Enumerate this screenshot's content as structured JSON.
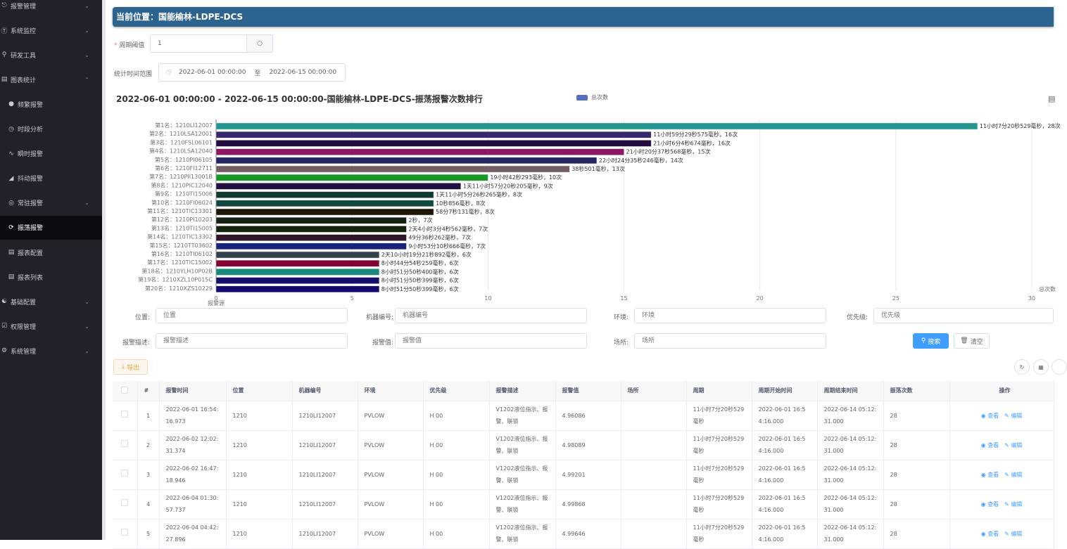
{
  "sidebar": {
    "items": [
      {
        "label": "报警管理",
        "icon": "bell-icon",
        "expand": "down"
      },
      {
        "label": "系统监控",
        "icon": "monitor-icon",
        "expand": "down"
      },
      {
        "label": "研发工具",
        "icon": "tool-icon",
        "expand": "down"
      },
      {
        "label": "图表统计",
        "icon": "bar-chart-icon",
        "expand": "up"
      },
      {
        "label": "频繁报警",
        "icon": "frequent-icon",
        "sub": true
      },
      {
        "label": "时段分析",
        "icon": "clock-icon",
        "sub": true
      },
      {
        "label": "瞬时报警",
        "icon": "line-chart-icon",
        "sub": true
      },
      {
        "label": "抖动报警",
        "icon": "signal-icon",
        "sub": true
      },
      {
        "label": "常驻报警",
        "icon": "target-icon",
        "sub": true,
        "expand": "down"
      },
      {
        "label": "振荡报警",
        "icon": "refresh-icon",
        "sub": true,
        "active": true
      },
      {
        "label": "报表配置",
        "icon": "form-icon",
        "sub": true
      },
      {
        "label": "报表列表",
        "icon": "list-icon",
        "sub": true
      },
      {
        "label": "基础配置",
        "icon": "config-icon",
        "expand": "down"
      },
      {
        "label": "权限管理",
        "icon": "lock-icon",
        "expand": "down"
      },
      {
        "label": "系统管理",
        "icon": "gear-icon",
        "expand": "down"
      }
    ]
  },
  "header": {
    "title": "当前位置：国能榆林-LDPE-DCS"
  },
  "filters": {
    "period_label": "周期阈值",
    "period_value": "1",
    "range_label": "统计时间范围",
    "range_start": "2022-06-01 00:00:00",
    "range_sep": "至",
    "range_end": "2022-06-15 00:00:00"
  },
  "chart_data": {
    "type": "bar",
    "orientation": "horizontal",
    "title": "2022-06-01 00:00:00 - 2022-06-15 00:00:00-国能榆林-LDPE-DCS-振荡报警次数排行",
    "legend": {
      "label": "总次数",
      "color": "#5470c6",
      "position": "top"
    },
    "ylabel": "报警源",
    "xlabel": "总次数",
    "xlim": [
      0,
      30
    ],
    "xticks": [
      0,
      5,
      10,
      15,
      20,
      25,
      30
    ],
    "grid": true,
    "categories": [
      "第1名：1210LI12007",
      "第2名：1210LSA12001",
      "第3名：1210FSL06101",
      "第4名：1210LSA12040",
      "第5名：1210PI06105",
      "第6名：1210FI12711",
      "第7名：1210PII13001B",
      "第8名：1210PIC12040",
      "第9名：1210TI15006",
      "第10名：1210FI06024",
      "第11名：1210TIC13301",
      "第12名：1210PI10203",
      "第13名：1210TI15005",
      "第14名：1210TIC13302",
      "第15名：1210TT03602",
      "第16名：1210TI06102",
      "第17名：1210TIC15002",
      "第18名：1210YLH10P02B",
      "第19名：1210XZL10P015C",
      "第20名：1210XZS10229"
    ],
    "values": [
      28,
      16,
      16,
      15,
      14,
      13,
      10,
      9,
      8,
      8,
      8,
      7,
      7,
      7,
      7,
      6,
      6,
      6,
      6,
      6
    ],
    "data_labels": [
      "11小时7分20秒529毫秒，28次",
      "11小时59分29秒575毫秒，16次",
      "21小时6分4秒674毫秒，16次",
      "21小时20分37秒568毫秒，15次",
      "22小时24分35秒246毫秒，14次",
      "38秒501毫秒，13次",
      "19小时42秒293毫秒，10次",
      "1天11小时57分20秒205毫秒，9次",
      "1天11小时5分26秒265毫秒，8次",
      "10秒856毫秒，8次",
      "58分7秒131毫秒，8次",
      "2秒，7次",
      "2天4小时3分4秒562毫秒，7次",
      "49分36秒262毫秒，7次",
      "9小时53分10秒666毫秒，7次",
      "2天10小时19分21秒892毫秒，6次",
      "8小时44分54秒259毫秒，6次",
      "8小时51分50秒400毫秒，6次",
      "8小时51分50秒399毫秒，6次",
      "8小时51分50秒399毫秒，6次"
    ],
    "colors": [
      "#22968f",
      "#35286e",
      "#230b3f",
      "#8b1862",
      "#24265f",
      "#735f61",
      "#179926",
      "#200f3f",
      "#113b31",
      "#0f4a42",
      "#201606",
      "#162116",
      "#13230e",
      "#331529",
      "#18247a",
      "#35424e",
      "#850233",
      "#19887e",
      "#120f6e",
      "#140a6e"
    ]
  },
  "search": {
    "fields": [
      {
        "label": "位置:",
        "placeholder": "位置"
      },
      {
        "label": "机器编号:",
        "placeholder": "机器编号"
      },
      {
        "label": "环境:",
        "placeholder": "环境"
      },
      {
        "label": "优先级:",
        "placeholder": "优先级"
      },
      {
        "label": "报警描述:",
        "placeholder": "报警描述"
      },
      {
        "label": "报警值:",
        "placeholder": "报警值"
      },
      {
        "label": "场所:",
        "placeholder": "场所"
      }
    ],
    "search_label": "搜索",
    "clear_label": "清空",
    "export_label": "导出",
    "accent": "#409eff"
  },
  "table": {
    "headers": [
      "",
      "#",
      "报警时间",
      "位置",
      "机器编号",
      "环境",
      "优先级",
      "报警描述",
      "报警值",
      "场所",
      "周期",
      "周期开始时间",
      "周期结束时间",
      "振荡次数",
      "操作"
    ],
    "view_label": "查看",
    "edit_label": "编辑",
    "rows": [
      {
        "no": "1",
        "time": "2022-06-01 16:54:16.973",
        "loc": "1210",
        "tag": "1210LI12007",
        "env": "PVLOW",
        "pri": "H 00",
        "desc": "V1202液位指示、报警、联锁",
        "val": "4.96086",
        "place": "",
        "period": "11小时7分20秒529毫秒",
        "start": "2022-06-01 16:54:16.000",
        "end": "2022-06-14 05:12:31.000",
        "count": "28"
      },
      {
        "no": "2",
        "time": "2022-06-02 12:02:31.374",
        "loc": "1210",
        "tag": "1210LI12007",
        "env": "PVLOW",
        "pri": "H 00",
        "desc": "V1202液位指示、报警、联锁",
        "val": "4.98089",
        "place": "",
        "period": "11小时7分20秒529毫秒",
        "start": "2022-06-01 16:54:16.000",
        "end": "2022-06-14 05:12:31.000",
        "count": "28"
      },
      {
        "no": "3",
        "time": "2022-06-02 16:47:18.946",
        "loc": "1210",
        "tag": "1210LI12007",
        "env": "PVLOW",
        "pri": "H 00",
        "desc": "V1202液位指示、报警、联锁",
        "val": "4.99201",
        "place": "",
        "period": "11小时7分20秒529毫秒",
        "start": "2022-06-01 16:54:16.000",
        "end": "2022-06-14 05:12:31.000",
        "count": "28"
      },
      {
        "no": "4",
        "time": "2022-06-04 01:30:57.737",
        "loc": "1210",
        "tag": "1210LI12007",
        "env": "PVLOW",
        "pri": "H 00",
        "desc": "V1202液位指示、报警、联锁",
        "val": "4.99868",
        "place": "",
        "period": "11小时7分20秒529毫秒",
        "start": "2022-06-01 16:54:16.000",
        "end": "2022-06-14 05:12:31.000",
        "count": "28"
      },
      {
        "no": "5",
        "time": "2022-06-04 04:42:27.896",
        "loc": "1210",
        "tag": "1210LI12007",
        "env": "PVLOW",
        "pri": "H 00",
        "desc": "V1202液位指示、报警、联锁",
        "val": "4.99646",
        "place": "",
        "period": "11小时7分20秒529毫秒",
        "start": "2022-06-01 16:54:16.000",
        "end": "2022-06-14 05:12:31.000",
        "count": "28"
      }
    ]
  }
}
